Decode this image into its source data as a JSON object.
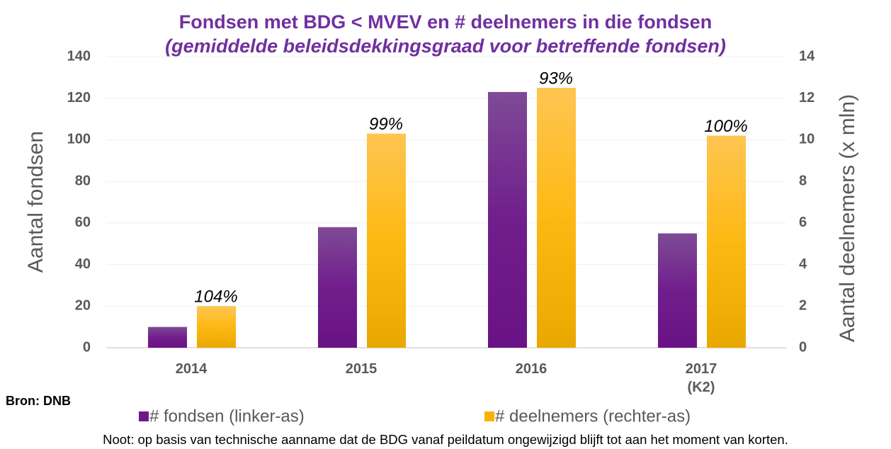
{
  "chart_data": {
    "type": "bar",
    "title": "Fondsen met BDG < MVEV en # deelnemers in die fondsen",
    "subtitle": "(gemiddelde beleidsdekkingsgraad voor betreffende fondsen)",
    "categories": [
      "2014",
      "2015",
      "2016",
      "2017 (K2)"
    ],
    "series": [
      {
        "name": "# fondsen (linker-as)",
        "color": "#701a8a",
        "values": [
          10,
          58,
          123,
          55
        ]
      },
      {
        "name": "# deelnemers (rechter-as)",
        "color": "#f5b400",
        "axis": "y2",
        "values": [
          2.0,
          10.3,
          12.5,
          10.2
        ]
      }
    ],
    "annotations": [
      "104%",
      "99%",
      "93%",
      "100%"
    ],
    "ylabel": "Aantal fondsen",
    "y2label": "Aantal deelnemers (x mln)",
    "ylim": [
      0,
      140
    ],
    "yticks": [
      0,
      20,
      40,
      60,
      80,
      100,
      120,
      140
    ],
    "y2lim": [
      0,
      14
    ],
    "y2ticks": [
      0,
      2,
      4,
      6,
      8,
      10,
      12,
      14
    ],
    "grid": true,
    "legend": "bottom",
    "source": "Bron: DNB",
    "note": "Noot: op basis van technische aanname dat de BDG vanaf peildatum ongewijzigd blijft tot aan het moment van korten."
  }
}
